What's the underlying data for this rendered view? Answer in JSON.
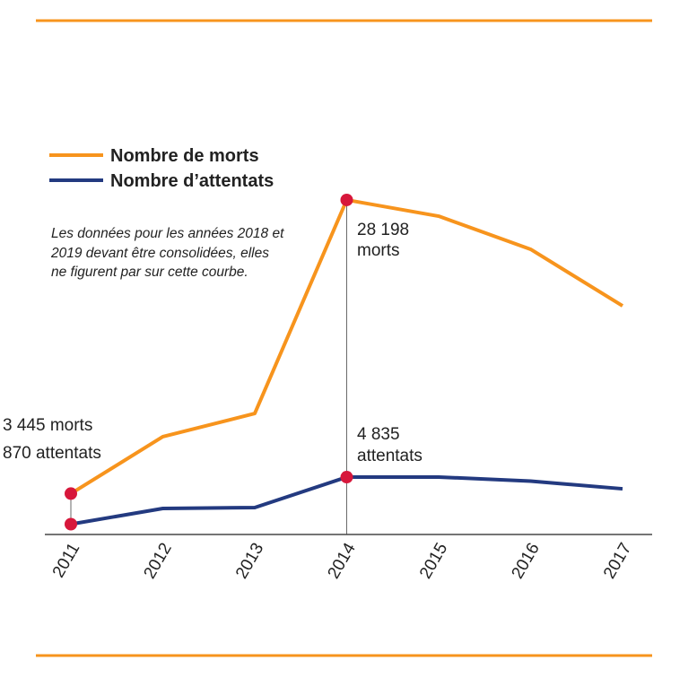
{
  "chart_data": {
    "type": "line",
    "categories": [
      "2011",
      "2012",
      "2013",
      "2014",
      "2015",
      "2016",
      "2017"
    ],
    "series": [
      {
        "name": "Nombre de morts",
        "color": "#f7941d",
        "values": [
          3445,
          8240,
          10200,
          28198,
          26830,
          24040,
          19270
        ]
      },
      {
        "name": "Nombre d’attentats",
        "color": "#233a80",
        "values": [
          870,
          2190,
          2270,
          4835,
          4840,
          4500,
          3850
        ]
      }
    ],
    "ylim": [
      0,
      30000
    ],
    "grid": false,
    "legend": "top-left",
    "marker_color": "#d7173b",
    "annotations": {
      "start_morts": "3 445 morts",
      "start_attentats": "870 attentats",
      "peak_morts_value": "28 198",
      "peak_morts_unit": "morts",
      "peak_attentats_value": "4 835",
      "peak_attentats_unit": "attentats"
    },
    "note": "Les données pour les années 2018 et 2019 devant être consolidées, elles ne figurent par sur cette courbe."
  },
  "frame_color": "#f7941d"
}
